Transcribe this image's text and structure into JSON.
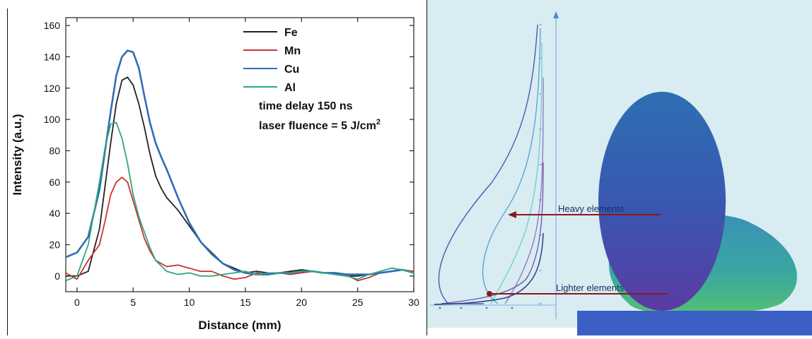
{
  "chart_data": [
    {
      "type": "line",
      "xlabel": "Distance (mm)",
      "ylabel": "Intensity (a.u.)",
      "xlim": [
        -1,
        30
      ],
      "ylim": [
        -10,
        165
      ],
      "xticks": [
        0,
        5,
        10,
        15,
        20,
        25,
        30
      ],
      "yticks": [
        0,
        20,
        40,
        60,
        80,
        100,
        120,
        140,
        160
      ],
      "grid": false,
      "legend_position": "top-right",
      "annotations": [
        "time delay 150 ns",
        "laser fluence = 5 J/cm"
      ],
      "annotation_superscript": "2",
      "series": [
        {
          "name": "Fe",
          "color": "#222222",
          "x": [
            -1,
            0,
            1,
            2,
            3,
            3.5,
            4,
            4.5,
            5,
            5.5,
            6,
            6.5,
            7,
            7.5,
            8,
            8.5,
            9,
            10,
            11,
            12,
            13,
            14,
            15,
            16,
            17,
            18,
            19,
            20,
            21,
            22,
            23,
            24,
            25,
            26,
            27,
            28,
            29,
            30
          ],
          "y": [
            0,
            0,
            3,
            30,
            85,
            110,
            125,
            127,
            122,
            110,
            95,
            78,
            64,
            56,
            50,
            46,
            42,
            32,
            22,
            15,
            8,
            5,
            2,
            3,
            2,
            2,
            3,
            4,
            3,
            2,
            1,
            0,
            0,
            1,
            2,
            3,
            4,
            2
          ]
        },
        {
          "name": "Mn",
          "color": "#cc3333",
          "x": [
            -1,
            0,
            1,
            2,
            2.5,
            3,
            3.5,
            4,
            4.5,
            5,
            5.5,
            6,
            6.5,
            7,
            8,
            9,
            10,
            11,
            12,
            13,
            14,
            15,
            16,
            17,
            18,
            19,
            20,
            21,
            22,
            23,
            24,
            25,
            26,
            27,
            28,
            29,
            30
          ],
          "y": [
            2,
            -2,
            10,
            20,
            35,
            52,
            60,
            63,
            60,
            48,
            36,
            24,
            16,
            10,
            6,
            7,
            5,
            3,
            3,
            0,
            -2,
            -1,
            2,
            1,
            2,
            1,
            2,
            3,
            2,
            1,
            1,
            -3,
            -1,
            2,
            3,
            4,
            3
          ]
        },
        {
          "name": "Cu",
          "color": "#2f6db5",
          "x": [
            -1,
            0,
            1,
            2,
            3,
            3.5,
            4,
            4.5,
            5,
            5.5,
            6,
            6.5,
            7,
            7.5,
            8,
            9,
            10,
            11,
            12,
            13,
            14,
            15,
            16,
            17,
            18,
            19,
            20,
            21,
            22,
            23,
            24,
            25,
            26,
            27,
            28,
            29,
            30
          ],
          "y": [
            12,
            15,
            25,
            55,
            105,
            128,
            140,
            144,
            143,
            133,
            115,
            98,
            85,
            76,
            68,
            50,
            34,
            22,
            14,
            8,
            4,
            2,
            1,
            1,
            2,
            2,
            3,
            3,
            2,
            2,
            1,
            1,
            1,
            2,
            3,
            4,
            2
          ]
        },
        {
          "name": "Al",
          "color": "#2ea77e",
          "x": [
            -1,
            0,
            1,
            2,
            2.5,
            3,
            3.5,
            4,
            4.5,
            5,
            5.5,
            6,
            6.5,
            7,
            8,
            9,
            10,
            11,
            12,
            13,
            14,
            15,
            16,
            17,
            18,
            19,
            20,
            21,
            22,
            23,
            24,
            25,
            26,
            27,
            28,
            29,
            30
          ],
          "y": [
            -3,
            0,
            20,
            60,
            82,
            97,
            98,
            88,
            72,
            52,
            38,
            28,
            18,
            10,
            3,
            1,
            2,
            0,
            0,
            1,
            2,
            3,
            1,
            2,
            2,
            2,
            3,
            3,
            2,
            1,
            0,
            -2,
            1,
            3,
            5,
            4,
            2
          ]
        }
      ]
    },
    {
      "type": "diagram",
      "labels": {
        "heavy": "Heavy elements",
        "lighter": "Lighter elements"
      },
      "colors": {
        "background": "#d6ebf1",
        "plume_top": "#2d6fb3",
        "plume_bottom": "#5b3aa3",
        "halo_top": "#3a90b8",
        "halo_bottom": "#3fb37f",
        "arrow": "#8a1a1a",
        "substrate": "#3b5fc4"
      },
      "profile_curves": [
        {
          "color": "#4a5ab0"
        },
        {
          "color": "#5aa0d0"
        },
        {
          "color": "#6ed0c8"
        },
        {
          "color": "#9070c8"
        },
        {
          "color": "#7050b0"
        },
        {
          "color": "#2a3f80"
        }
      ]
    }
  ]
}
